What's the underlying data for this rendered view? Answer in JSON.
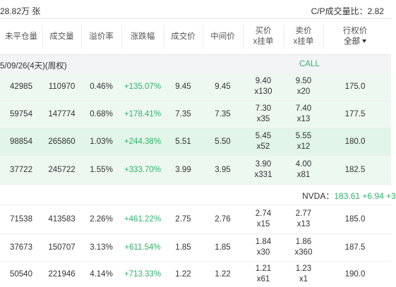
{
  "topbar": {
    "volume_text": "28.82万 张",
    "cp_ratio_text": "C/P成交量比：2.82"
  },
  "header": {
    "col_open_interest": "未平仓量",
    "col_volume": "成交量",
    "col_premium": "溢价率",
    "col_change": "涨跌幅",
    "col_last": "成交价",
    "col_mid": "中间价",
    "col_bid_line1": "买价",
    "col_bid_line2": "x挂单",
    "col_ask_line1": "卖价",
    "col_ask_line2": "x挂单",
    "col_strike_line1": "行权价",
    "col_strike_line2": "全部"
  },
  "expiry": {
    "date_text": "5/09/26(4天)(周权)",
    "side_label": "CALL"
  },
  "rows_top": [
    {
      "oi": "42985",
      "vol": "110970",
      "prem": "0.46%",
      "chg": "+135.07%",
      "last": "9.45",
      "mid": "9.45",
      "bid": "9.40",
      "bid_size": "x130",
      "ask": "9.50",
      "ask_size": "x20",
      "strike": "175.0"
    },
    {
      "oi": "59754",
      "vol": "147774",
      "prem": "0.68%",
      "chg": "+178.41%",
      "last": "7.35",
      "mid": "7.35",
      "bid": "7.30",
      "bid_size": "x35",
      "ask": "7.40",
      "ask_size": "x13",
      "strike": "177.5"
    },
    {
      "oi": "98854",
      "vol": "265860",
      "prem": "1.03%",
      "chg": "+244.38%",
      "last": "5.51",
      "mid": "5.50",
      "bid": "5.45",
      "bid_size": "x52",
      "ask": "5.55",
      "ask_size": "x12",
      "strike": "180.0"
    },
    {
      "oi": "37722",
      "vol": "245722",
      "prem": "1.55%",
      "chg": "+333.70%",
      "last": "3.99",
      "mid": "3.95",
      "bid": "3.90",
      "bid_size": "x331",
      "ask": "4.00",
      "ask_size": "x81",
      "strike": "182.5"
    }
  ],
  "spot": {
    "ticker": "NVDA：",
    "price": "183.61",
    "change": "+6.94",
    "extra": "+3"
  },
  "rows_bottom": [
    {
      "oi": "71538",
      "vol": "413583",
      "prem": "2.26%",
      "chg": "+461.22%",
      "last": "2.75",
      "mid": "2.76",
      "bid": "2.74",
      "bid_size": "x15",
      "ask": "2.77",
      "ask_size": "x13",
      "strike": "185.0"
    },
    {
      "oi": "37673",
      "vol": "150707",
      "prem": "3.13%",
      "chg": "+611.54%",
      "last": "1.85",
      "mid": "1.85",
      "bid": "1.84",
      "bid_size": "x30",
      "ask": "1.86",
      "ask_size": "x360",
      "strike": "187.5"
    },
    {
      "oi": "50540",
      "vol": "221946",
      "prem": "4.14%",
      "chg": "+713.33%",
      "last": "1.22",
      "mid": "1.22",
      "bid": "1.21",
      "bid_size": "x61",
      "ask": "1.23",
      "ask_size": "x1",
      "strike": "190.0"
    }
  ]
}
